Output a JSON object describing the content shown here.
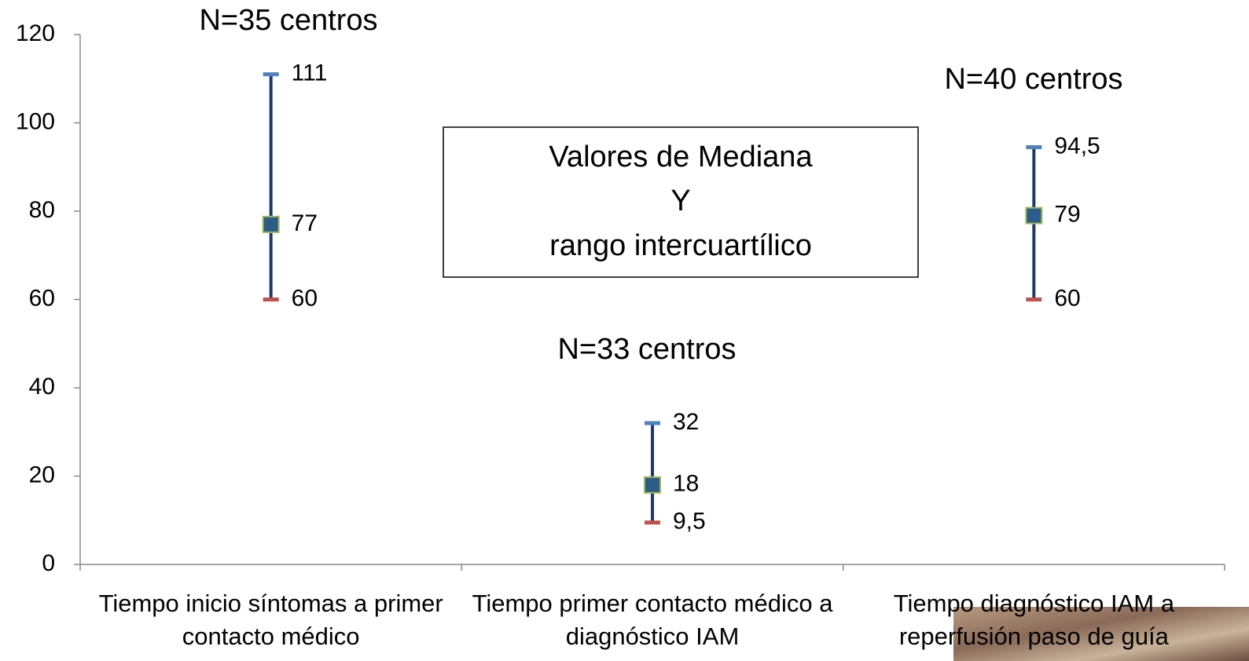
{
  "chart_data": {
    "type": "hilo",
    "categories": [
      "Tiempo inicio síntomas a primer contacto médico",
      "Tiempo primer contacto médico a diagnóstico IAM",
      "Tiempo diagnóstico IAM a reperfusión paso de guía"
    ],
    "series": [
      {
        "color": "#4f81bd",
        "values": [
          111,
          32,
          94.5
        ],
        "value_labels": [
          "111",
          "32",
          "94,5"
        ]
      },
      {
        "color": "#2e5c8a",
        "values": [
          77,
          18,
          79
        ]
      },
      {
        "color": "#c0504d",
        "values": [
          60,
          9.5,
          60
        ],
        "value_labels": [
          "60",
          "9,5",
          "60"
        ]
      }
    ],
    "range_color": "#1f3864",
    "median_border": "#9bbb59",
    "ylim": [
      0,
      120
    ],
    "yticks": [
      0,
      20,
      40,
      60,
      80,
      100,
      120
    ],
    "grid": false,
    "annotations": [
      "N=35 centros",
      "N=33 centros",
      "N=40 centros"
    ],
    "box_text": [
      "Valores de Mediana",
      "Y",
      "rango intercuartílico"
    ]
  }
}
